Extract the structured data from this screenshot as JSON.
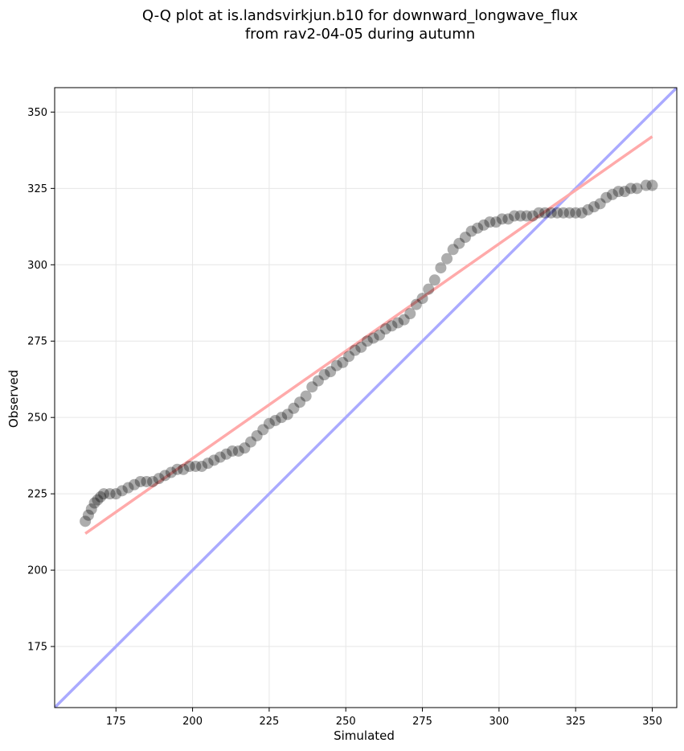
{
  "chart_data": {
    "type": "scatter",
    "title_line1": "Q-Q plot at is.landsvirkjun.b10 for downward_longwave_flux",
    "title_line2": "from rav2-04-05 during autumn",
    "xlabel": "Simulated",
    "ylabel": "Observed",
    "xlim": [
      155,
      358
    ],
    "ylim": [
      155,
      358
    ],
    "xticks": [
      175,
      200,
      225,
      250,
      275,
      300,
      325,
      350
    ],
    "yticks": [
      175,
      200,
      225,
      250,
      275,
      300,
      325,
      350
    ],
    "grid": true,
    "colors": {
      "points": "#000000",
      "identity_line": "#aaaaff",
      "fit_line": "#ffaaaa",
      "grid": "#e6e6e6"
    },
    "qq_points": [
      [
        165,
        216
      ],
      [
        166,
        218
      ],
      [
        167,
        220
      ],
      [
        168,
        222
      ],
      [
        169,
        223
      ],
      [
        170,
        224
      ],
      [
        171,
        225
      ],
      [
        173,
        225
      ],
      [
        175,
        225
      ],
      [
        177,
        226
      ],
      [
        179,
        227
      ],
      [
        181,
        228
      ],
      [
        183,
        229
      ],
      [
        185,
        229
      ],
      [
        187,
        229
      ],
      [
        189,
        230
      ],
      [
        191,
        231
      ],
      [
        193,
        232
      ],
      [
        195,
        233
      ],
      [
        197,
        233
      ],
      [
        199,
        234
      ],
      [
        201,
        234
      ],
      [
        203,
        234
      ],
      [
        205,
        235
      ],
      [
        207,
        236
      ],
      [
        209,
        237
      ],
      [
        211,
        238
      ],
      [
        213,
        239
      ],
      [
        215,
        239
      ],
      [
        217,
        240
      ],
      [
        219,
        242
      ],
      [
        221,
        244
      ],
      [
        223,
        246
      ],
      [
        225,
        248
      ],
      [
        227,
        249
      ],
      [
        229,
        250
      ],
      [
        231,
        251
      ],
      [
        233,
        253
      ],
      [
        235,
        255
      ],
      [
        237,
        257
      ],
      [
        239,
        260
      ],
      [
        241,
        262
      ],
      [
        243,
        264
      ],
      [
        245,
        265
      ],
      [
        247,
        267
      ],
      [
        249,
        268
      ],
      [
        251,
        270
      ],
      [
        253,
        272
      ],
      [
        255,
        273
      ],
      [
        257,
        275
      ],
      [
        259,
        276
      ],
      [
        261,
        277
      ],
      [
        263,
        279
      ],
      [
        265,
        280
      ],
      [
        267,
        281
      ],
      [
        269,
        282
      ],
      [
        271,
        284
      ],
      [
        273,
        287
      ],
      [
        275,
        289
      ],
      [
        277,
        292
      ],
      [
        279,
        295
      ],
      [
        281,
        299
      ],
      [
        283,
        302
      ],
      [
        285,
        305
      ],
      [
        287,
        307
      ],
      [
        289,
        309
      ],
      [
        291,
        311
      ],
      [
        293,
        312
      ],
      [
        295,
        313
      ],
      [
        297,
        314
      ],
      [
        299,
        314
      ],
      [
        301,
        315
      ],
      [
        303,
        315
      ],
      [
        305,
        316
      ],
      [
        307,
        316
      ],
      [
        309,
        316
      ],
      [
        311,
        316
      ],
      [
        313,
        317
      ],
      [
        315,
        317
      ],
      [
        317,
        317
      ],
      [
        319,
        317
      ],
      [
        321,
        317
      ],
      [
        323,
        317
      ],
      [
        325,
        317
      ],
      [
        327,
        317
      ],
      [
        329,
        318
      ],
      [
        331,
        319
      ],
      [
        333,
        320
      ],
      [
        335,
        322
      ],
      [
        337,
        323
      ],
      [
        339,
        324
      ],
      [
        341,
        324
      ],
      [
        343,
        325
      ],
      [
        345,
        325
      ],
      [
        348,
        326
      ],
      [
        350,
        326
      ]
    ],
    "identity_line": [
      [
        155,
        155
      ],
      [
        358,
        358
      ]
    ],
    "fit_line": [
      [
        165,
        212
      ],
      [
        350,
        342
      ]
    ]
  }
}
